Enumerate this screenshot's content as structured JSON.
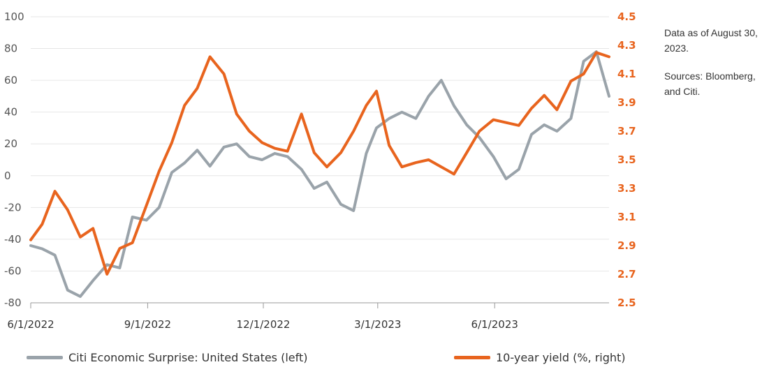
{
  "notes": {
    "as_of": "Data as of August 30, 2023.",
    "sources": "Sources: Bloomberg, and Citi."
  },
  "legend": {
    "left_label": "Citi Economic Surprise: United States (left)",
    "right_label": "10-year yield (%, right)"
  },
  "colors": {
    "surprise": "#9aa3aa",
    "yield": "#e8641e",
    "grid": "#e6e6e6"
  },
  "chart_data": {
    "type": "line",
    "x_tick_labels": [
      "6/1/2022",
      "9/1/2022",
      "12/1/2022",
      "3/1/2023",
      "6/1/2023"
    ],
    "y_left": {
      "range": [
        -80,
        100
      ],
      "ticks": [
        -80,
        -60,
        -40,
        -20,
        0,
        20,
        40,
        60,
        80,
        100
      ]
    },
    "y_right": {
      "range": [
        2.5,
        4.5
      ],
      "ticks": [
        "2.5",
        "2.7",
        "2.9",
        "3.1",
        "3.3",
        "3.5",
        "3.7",
        "3.9",
        "4.1",
        "4.3",
        "4.5"
      ]
    },
    "x_range": [
      "2022-06-01",
      "2023-08-30"
    ],
    "grid": "horizontal",
    "legend_position": "bottom",
    "series": [
      {
        "name": "Citi Economic Surprise: United States (left)",
        "axis": "left",
        "x": [
          "2022-06-01",
          "2022-06-10",
          "2022-06-20",
          "2022-06-30",
          "2022-07-10",
          "2022-07-20",
          "2022-07-31",
          "2022-08-10",
          "2022-08-20",
          "2022-08-31",
          "2022-09-10",
          "2022-09-20",
          "2022-09-30",
          "2022-10-10",
          "2022-10-20",
          "2022-10-31",
          "2022-11-10",
          "2022-11-20",
          "2022-11-30",
          "2022-12-10",
          "2022-12-20",
          "2022-12-31",
          "2023-01-10",
          "2023-01-20",
          "2023-01-31",
          "2023-02-10",
          "2023-02-20",
          "2023-02-28",
          "2023-03-10",
          "2023-03-20",
          "2023-03-31",
          "2023-04-10",
          "2023-04-20",
          "2023-04-30",
          "2023-05-10",
          "2023-05-20",
          "2023-05-31",
          "2023-06-10",
          "2023-06-20",
          "2023-06-30",
          "2023-07-10",
          "2023-07-20",
          "2023-07-31",
          "2023-08-10",
          "2023-08-20",
          "2023-08-30"
        ],
        "values": [
          -44,
          -46,
          -50,
          -72,
          -76,
          -66,
          -56,
          -58,
          -26,
          -28,
          -20,
          2,
          8,
          16,
          6,
          18,
          20,
          12,
          10,
          14,
          12,
          4,
          -8,
          -4,
          -18,
          -22,
          14,
          30,
          36,
          40,
          36,
          50,
          60,
          44,
          32,
          24,
          12,
          -2,
          4,
          26,
          32,
          28,
          36,
          72,
          78,
          50
        ]
      },
      {
        "name": "10-year yield (%, right)",
        "axis": "right",
        "x": [
          "2022-06-01",
          "2022-06-10",
          "2022-06-20",
          "2022-06-30",
          "2022-07-10",
          "2022-07-20",
          "2022-07-31",
          "2022-08-10",
          "2022-08-20",
          "2022-08-31",
          "2022-09-10",
          "2022-09-20",
          "2022-09-30",
          "2022-10-10",
          "2022-10-20",
          "2022-10-31",
          "2022-11-10",
          "2022-11-20",
          "2022-11-30",
          "2022-12-10",
          "2022-12-20",
          "2022-12-31",
          "2023-01-10",
          "2023-01-20",
          "2023-01-31",
          "2023-02-10",
          "2023-02-20",
          "2023-02-28",
          "2023-03-10",
          "2023-03-20",
          "2023-03-31",
          "2023-04-10",
          "2023-04-20",
          "2023-04-30",
          "2023-05-10",
          "2023-05-20",
          "2023-05-31",
          "2023-06-10",
          "2023-06-20",
          "2023-06-30",
          "2023-07-10",
          "2023-07-20",
          "2023-07-31",
          "2023-08-10",
          "2023-08-20",
          "2023-08-30"
        ],
        "values": [
          2.94,
          3.05,
          3.28,
          3.15,
          2.96,
          3.02,
          2.7,
          2.88,
          2.92,
          3.18,
          3.42,
          3.62,
          3.88,
          4.0,
          4.22,
          4.1,
          3.82,
          3.7,
          3.62,
          3.58,
          3.56,
          3.82,
          3.55,
          3.45,
          3.55,
          3.7,
          3.88,
          3.98,
          3.6,
          3.45,
          3.48,
          3.5,
          3.45,
          3.4,
          3.55,
          3.7,
          3.78,
          3.76,
          3.74,
          3.86,
          3.95,
          3.85,
          4.05,
          4.1,
          4.25,
          4.22
        ]
      }
    ]
  }
}
